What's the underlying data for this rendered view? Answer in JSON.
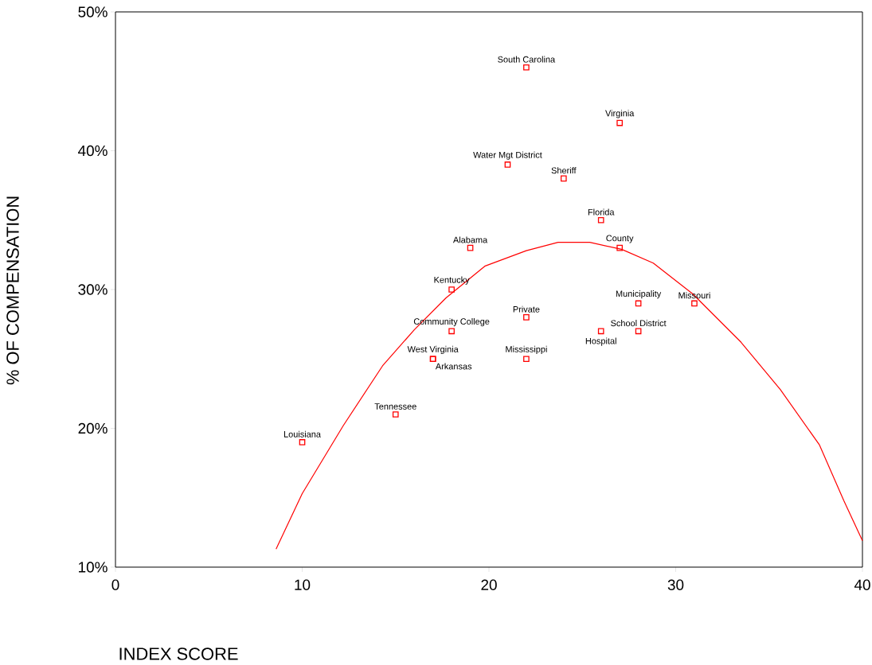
{
  "chart_data": {
    "type": "scatter",
    "xlabel": "INDEX SCORE",
    "ylabel": "% OF COMPENSATION",
    "xlim": [
      0,
      40
    ],
    "ylim": [
      10,
      50
    ],
    "xticks": [
      0,
      10,
      20,
      30,
      40
    ],
    "yticks": [
      {
        "value": 10,
        "label": "10%"
      },
      {
        "value": 20,
        "label": "20%"
      },
      {
        "value": 30,
        "label": "30%"
      },
      {
        "value": 40,
        "label": "40%"
      },
      {
        "value": 50,
        "label": "50%"
      }
    ],
    "marker": "square",
    "series": [
      {
        "color": "#ff0000",
        "x": [
          22,
          27,
          21,
          24,
          26,
          27,
          19,
          18,
          22,
          28,
          31,
          18,
          28,
          26,
          17,
          17,
          22,
          15,
          10
        ],
        "values": [
          46,
          42,
          39,
          38,
          35,
          33,
          33,
          30,
          28,
          29,
          29,
          27,
          27,
          27,
          25,
          25,
          25,
          21,
          19
        ]
      },
      {
        "type": "line",
        "color": "#ff0000",
        "marker": "none",
        "x": [
          8.6,
          10.0,
          12.2,
          14.3,
          16.0,
          17.7,
          19.8,
          22.0,
          23.7,
          25.4,
          27.1,
          28.8,
          30.9,
          33.5,
          35.6,
          37.7,
          39.0,
          40.0
        ],
        "values": [
          11.3,
          15.3,
          20.2,
          24.5,
          27.1,
          29.4,
          31.7,
          32.8,
          33.4,
          33.4,
          32.9,
          31.9,
          29.7,
          26.2,
          22.8,
          18.8,
          14.8,
          11.9
        ]
      }
    ],
    "annotations": [
      {
        "text": "South Carolina",
        "x": 22,
        "y": 46
      },
      {
        "text": "Virginia",
        "x": 27,
        "y": 42
      },
      {
        "text": "Water Mgt District",
        "x": 21,
        "y": 39
      },
      {
        "text": "Sheriff",
        "x": 24,
        "y": 38
      },
      {
        "text": "Florida",
        "x": 26,
        "y": 35
      },
      {
        "text": "County",
        "x": 27,
        "y": 33
      },
      {
        "text": "Alabama",
        "x": 19,
        "y": 33
      },
      {
        "text": "Kentucky",
        "x": 18,
        "y": 30
      },
      {
        "text": "Private",
        "x": 22,
        "y": 28
      },
      {
        "text": "Municipality",
        "x": 28,
        "y": 29
      },
      {
        "text": "Missouri",
        "x": 31,
        "y": 29
      },
      {
        "text": "Community College",
        "x": 18,
        "y": 27
      },
      {
        "text": "School District",
        "x": 28,
        "y": 27
      },
      {
        "text": "Hospital",
        "x": 26,
        "y": 27
      },
      {
        "text": "West Virginia",
        "x": 17,
        "y": 25
      },
      {
        "text": "Arkansas",
        "x": 17,
        "y": 25
      },
      {
        "text": "Mississippi",
        "x": 22,
        "y": 25
      },
      {
        "text": "Tennessee",
        "x": 15,
        "y": 21
      },
      {
        "text": "Louisiana",
        "x": 10,
        "y": 19
      }
    ]
  }
}
